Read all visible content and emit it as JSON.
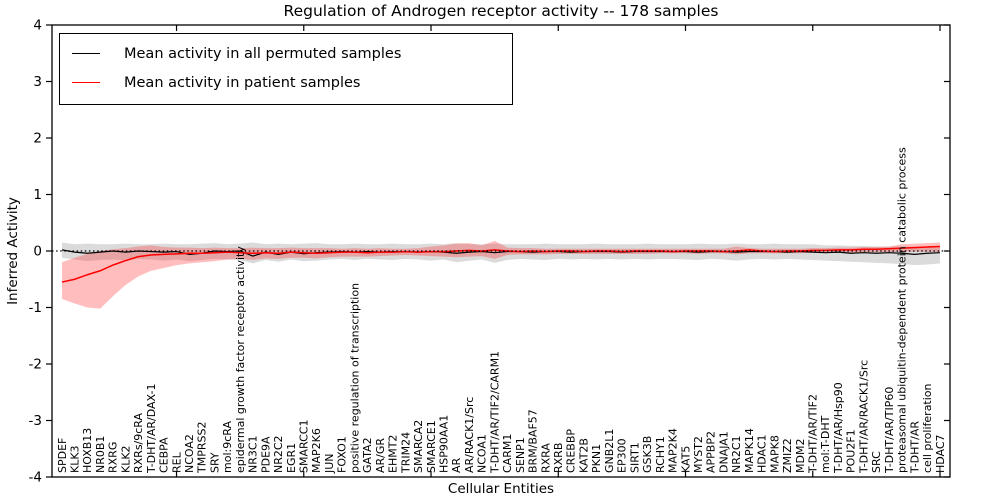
{
  "chart_data": {
    "type": "line",
    "title": "Regulation of Androgen receptor activity -- 178 samples",
    "xlabel": "Cellular Entities",
    "ylabel": "Inferred Activity",
    "ylim": [
      -4,
      4
    ],
    "ytick_labels": [
      "-4",
      "-3",
      "-2",
      "-1",
      "0",
      "1",
      "2",
      "3",
      "4"
    ],
    "yticks": [
      -4,
      -3,
      -2,
      -1,
      0,
      1,
      2,
      3,
      4
    ],
    "grid": false,
    "legend_position": "upper left",
    "zero_line": {
      "y": 0,
      "style": "dotted",
      "color": "#000000"
    },
    "categories": [
      "SPDEF",
      "KLK3",
      "HOXB13",
      "NR0B1",
      "RXRG",
      "KLK2",
      "RXRs/9cRA",
      "T-DHT/AR/DAX-1",
      "CEBPA",
      "REL",
      "NCOA2",
      "TMPRSS2",
      "SRY",
      "mol:9cRA",
      "epidermal growth factor receptor activity",
      "NR3C1",
      "PDE9A",
      "NR2C2",
      "EGR1",
      "SMARCC1",
      "MAP2K6",
      "JUN",
      "FOXO1",
      "positive regulation of transcription",
      "GATA2",
      "AR/GR",
      "EHMT2",
      "TRIM24",
      "SMARCA2",
      "SMARCE1",
      "HSP90AA1",
      "AR",
      "AR/RACK1/Src",
      "NCOA1",
      "T-DHT/AR/TIF2/CARM1",
      "CARM1",
      "SENP1",
      "BRM/BAF57",
      "RXRA",
      "RXRB",
      "CREBBP",
      "KAT2B",
      "PKN1",
      "GNB2L1",
      "EP300",
      "SIRT1",
      "GSK3B",
      "RCHY1",
      "MAP2K4",
      "KAT5",
      "MYST2",
      "APPBP2",
      "DNAJA1",
      "NR2C1",
      "MAPK14",
      "HDAC1",
      "MAPK8",
      "ZMIZ2",
      "MDM2",
      "T-DHT/AR/TIF2",
      "mol:T-DHT",
      "T-DHT/AR/Hsp90",
      "POU2F1",
      "T-DHT/AR/RACK1/Src",
      "SRC",
      "T-DHT/AR/TIP60",
      "proteasomal ubiquitin-dependent protein catabolic process",
      "T-DHT/AR",
      "cell proliferation",
      "HDAC7"
    ],
    "series": [
      {
        "name": "Mean activity in all permuted samples",
        "color": "#000000",
        "band_color": "#999999",
        "band_opacity": 0.35,
        "values": [
          0.02,
          -0.02,
          -0.04,
          -0.02,
          0.0,
          -0.02,
          0.0,
          -0.01,
          -0.02,
          -0.01,
          -0.06,
          -0.04,
          0.0,
          -0.01,
          0.0,
          -0.09,
          -0.02,
          -0.06,
          -0.02,
          -0.05,
          -0.03,
          -0.02,
          -0.01,
          -0.02,
          -0.01,
          -0.02,
          -0.01,
          -0.01,
          -0.02,
          -0.01,
          -0.02,
          -0.04,
          -0.02,
          -0.01,
          -0.03,
          -0.01,
          -0.01,
          -0.02,
          -0.01,
          -0.01,
          -0.02,
          -0.01,
          -0.01,
          -0.01,
          -0.02,
          -0.01,
          -0.01,
          -0.01,
          -0.01,
          -0.01,
          -0.02,
          -0.01,
          -0.01,
          -0.02,
          -0.01,
          -0.01,
          -0.01,
          -0.02,
          -0.01,
          -0.02,
          -0.03,
          -0.02,
          -0.04,
          -0.03,
          -0.04,
          -0.03,
          -0.04,
          -0.06,
          -0.04,
          -0.03
        ],
        "band_upper": [
          0.15,
          0.12,
          0.13,
          0.12,
          0.12,
          0.13,
          0.12,
          0.12,
          0.13,
          0.12,
          0.12,
          0.13,
          0.14,
          0.12,
          0.13,
          0.15,
          0.12,
          0.13,
          0.12,
          0.13,
          0.14,
          0.12,
          0.12,
          0.13,
          0.12,
          0.12,
          0.13,
          0.12,
          0.12,
          0.13,
          0.12,
          0.14,
          0.12,
          0.12,
          0.13,
          0.12,
          0.12,
          0.12,
          0.13,
          0.12,
          0.12,
          0.12,
          0.13,
          0.12,
          0.12,
          0.12,
          0.13,
          0.12,
          0.12,
          0.12,
          0.13,
          0.12,
          0.12,
          0.13,
          0.12,
          0.12,
          0.13,
          0.12,
          0.12,
          0.12,
          0.1,
          0.1,
          0.09,
          0.09,
          0.08,
          0.08,
          0.08,
          0.08,
          0.08,
          0.09
        ],
        "band_lower": [
          -0.12,
          -0.15,
          -0.18,
          -0.16,
          -0.15,
          -0.17,
          -0.14,
          -0.15,
          -0.17,
          -0.15,
          -0.18,
          -0.16,
          -0.14,
          -0.15,
          -0.16,
          -0.22,
          -0.16,
          -0.19,
          -0.15,
          -0.18,
          -0.17,
          -0.15,
          -0.14,
          -0.16,
          -0.14,
          -0.15,
          -0.16,
          -0.14,
          -0.15,
          -0.17,
          -0.15,
          -0.2,
          -0.17,
          -0.15,
          -0.21,
          -0.16,
          -0.14,
          -0.15,
          -0.16,
          -0.14,
          -0.15,
          -0.14,
          -0.15,
          -0.14,
          -0.15,
          -0.14,
          -0.15,
          -0.14,
          -0.14,
          -0.15,
          -0.16,
          -0.14,
          -0.15,
          -0.17,
          -0.15,
          -0.14,
          -0.15,
          -0.14,
          -0.15,
          -0.16,
          -0.17,
          -0.18,
          -0.19,
          -0.2,
          -0.21,
          -0.22,
          -0.23,
          -0.25,
          -0.24,
          -0.22
        ]
      },
      {
        "name": "Mean activity in patient samples",
        "color": "#ff0000",
        "band_color": "#ff3333",
        "band_opacity": 0.32,
        "values": [
          -0.55,
          -0.5,
          -0.42,
          -0.35,
          -0.25,
          -0.17,
          -0.1,
          -0.07,
          -0.06,
          -0.05,
          -0.04,
          -0.04,
          -0.03,
          -0.02,
          -0.03,
          -0.04,
          -0.03,
          -0.04,
          -0.02,
          -0.03,
          -0.04,
          -0.03,
          -0.02,
          -0.02,
          -0.03,
          -0.02,
          -0.02,
          -0.01,
          -0.02,
          -0.01,
          -0.01,
          0.0,
          0.01,
          0.0,
          0.02,
          0.0,
          -0.01,
          0.0,
          -0.01,
          0.0,
          0.0,
          -0.01,
          0.0,
          0.0,
          -0.01,
          0.0,
          0.0,
          0.0,
          -0.01,
          0.0,
          0.0,
          0.0,
          -0.01,
          0.0,
          0.02,
          0.0,
          -0.01,
          0.0,
          0.0,
          0.01,
          0.01,
          0.02,
          0.02,
          0.03,
          0.03,
          0.04,
          0.05,
          0.06,
          0.07,
          0.08
        ],
        "band_upper": [
          -0.2,
          -0.12,
          -0.05,
          0.0,
          0.03,
          0.05,
          0.08,
          0.1,
          0.07,
          0.06,
          0.06,
          0.05,
          0.06,
          0.05,
          0.05,
          0.06,
          0.05,
          0.05,
          0.06,
          0.05,
          0.05,
          0.05,
          0.04,
          0.05,
          0.04,
          0.05,
          0.04,
          0.04,
          0.05,
          0.08,
          0.1,
          0.13,
          0.14,
          0.1,
          0.18,
          0.06,
          0.05,
          0.05,
          0.04,
          0.04,
          0.04,
          0.04,
          0.04,
          0.04,
          0.04,
          0.04,
          0.04,
          0.04,
          0.04,
          0.04,
          0.04,
          0.04,
          0.04,
          0.08,
          0.05,
          0.04,
          0.04,
          0.04,
          0.04,
          0.05,
          0.05,
          0.06,
          0.06,
          0.07,
          0.07,
          0.08,
          0.12,
          0.13,
          0.14,
          0.15
        ],
        "band_lower": [
          -0.85,
          -0.93,
          -1.0,
          -1.02,
          -0.8,
          -0.6,
          -0.45,
          -0.35,
          -0.3,
          -0.25,
          -0.22,
          -0.2,
          -0.18,
          -0.15,
          -0.14,
          -0.16,
          -0.13,
          -0.14,
          -0.12,
          -0.12,
          -0.13,
          -0.11,
          -0.1,
          -0.1,
          -0.1,
          -0.09,
          -0.08,
          -0.07,
          -0.08,
          -0.09,
          -0.1,
          -0.11,
          -0.1,
          -0.09,
          -0.14,
          -0.07,
          -0.06,
          -0.06,
          -0.06,
          -0.05,
          -0.05,
          -0.05,
          -0.05,
          -0.05,
          -0.05,
          -0.05,
          -0.05,
          -0.04,
          -0.04,
          -0.04,
          -0.05,
          -0.04,
          -0.04,
          -0.06,
          -0.04,
          -0.04,
          -0.04,
          -0.04,
          -0.04,
          -0.03,
          -0.03,
          -0.03,
          -0.03,
          -0.02,
          -0.02,
          -0.02,
          -0.01,
          -0.01,
          -0.01,
          -0.02
        ]
      }
    ]
  }
}
